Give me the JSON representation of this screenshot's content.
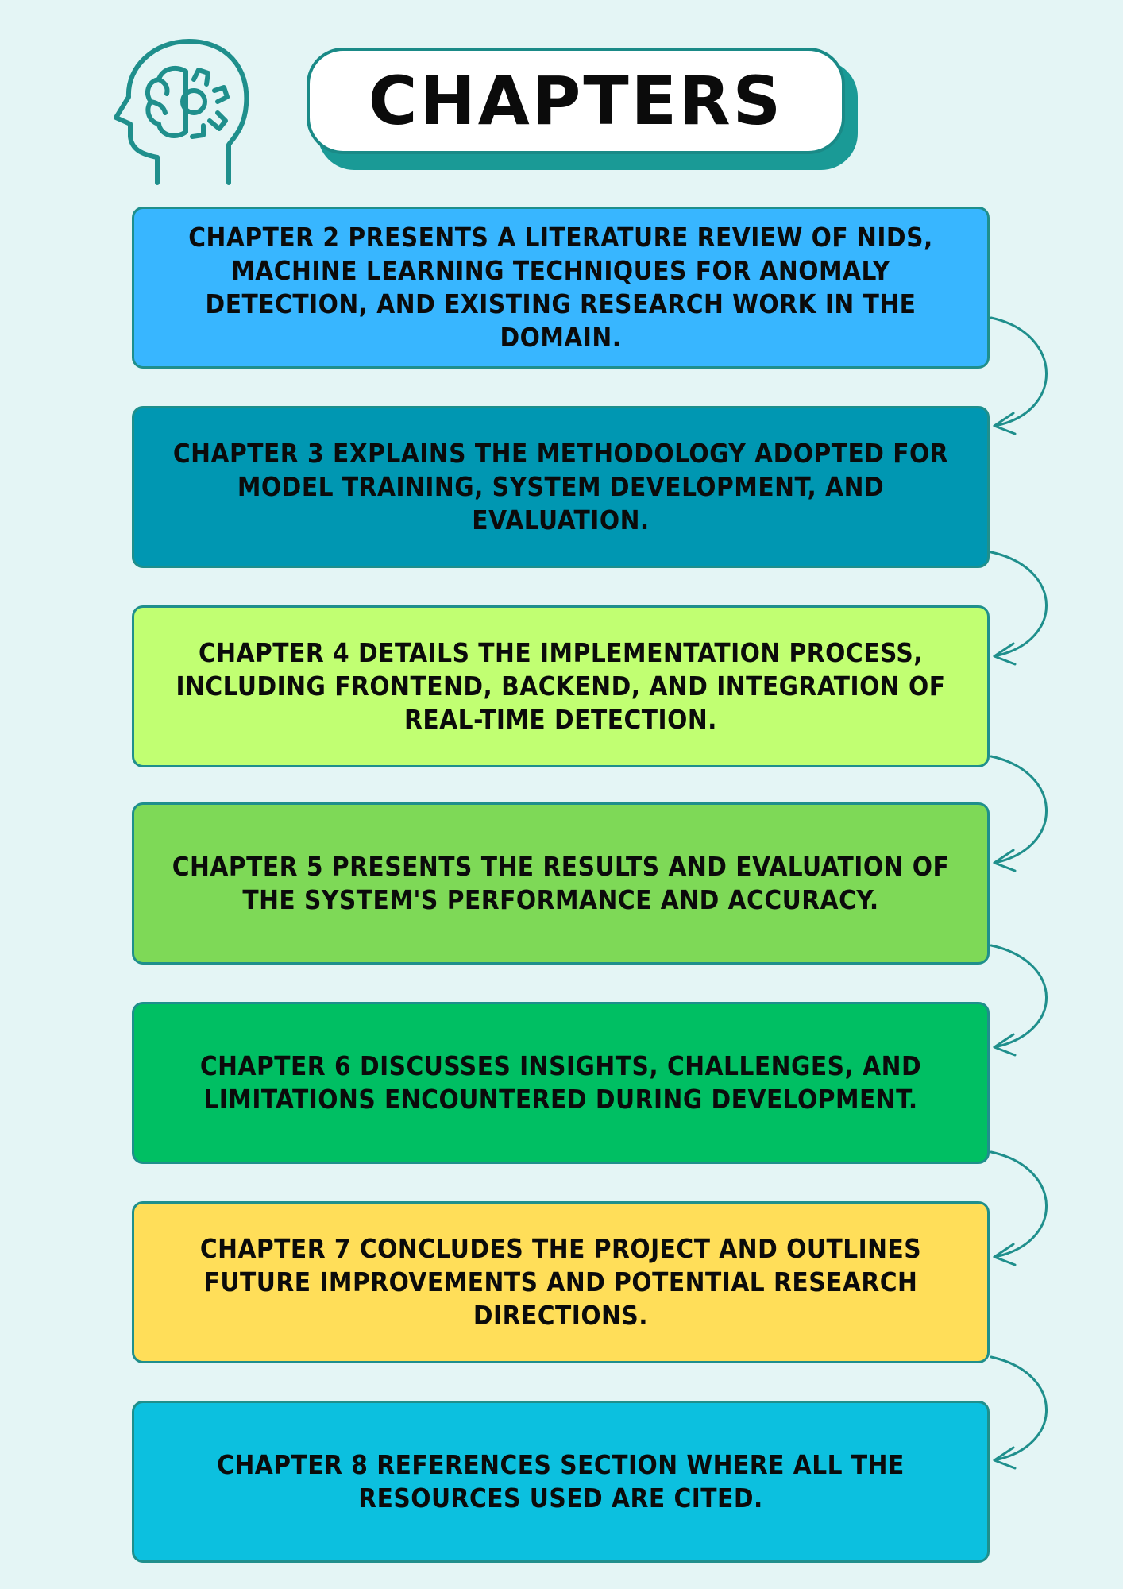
{
  "title": "CHAPTERS",
  "icon": "brain-gear-head-icon",
  "colors": {
    "background": "#e4f5f5",
    "accent": "#1f8f8c"
  },
  "chapters": [
    {
      "text": "Chapter 2 presents a literature review of NIDS, machine learning techniques for anomaly detection, and existing research work in the domain.",
      "color": "#38b6ff"
    },
    {
      "text": "Chapter 3 explains the methodology adopted for model training, system development, and evaluation.",
      "color": "#0097b2"
    },
    {
      "text": "Chapter 4 details the implementation process, including frontend, backend, and integration of real-time detection.",
      "color": "#c1ff72"
    },
    {
      "text": "Chapter 5 presents the results and evaluation of the system's performance and accuracy.",
      "color": "#7ed957"
    },
    {
      "text": "Chapter 6 discusses insights, challenges, and limitations encountered during development.",
      "color": "#00bf63"
    },
    {
      "text": "Chapter 7 concludes the project and outlines future improvements and potential research directions.",
      "color": "#ffde59"
    },
    {
      "text": "Chapter 8 references section where all the resources used are cited.",
      "color": "#0cc0df"
    }
  ]
}
